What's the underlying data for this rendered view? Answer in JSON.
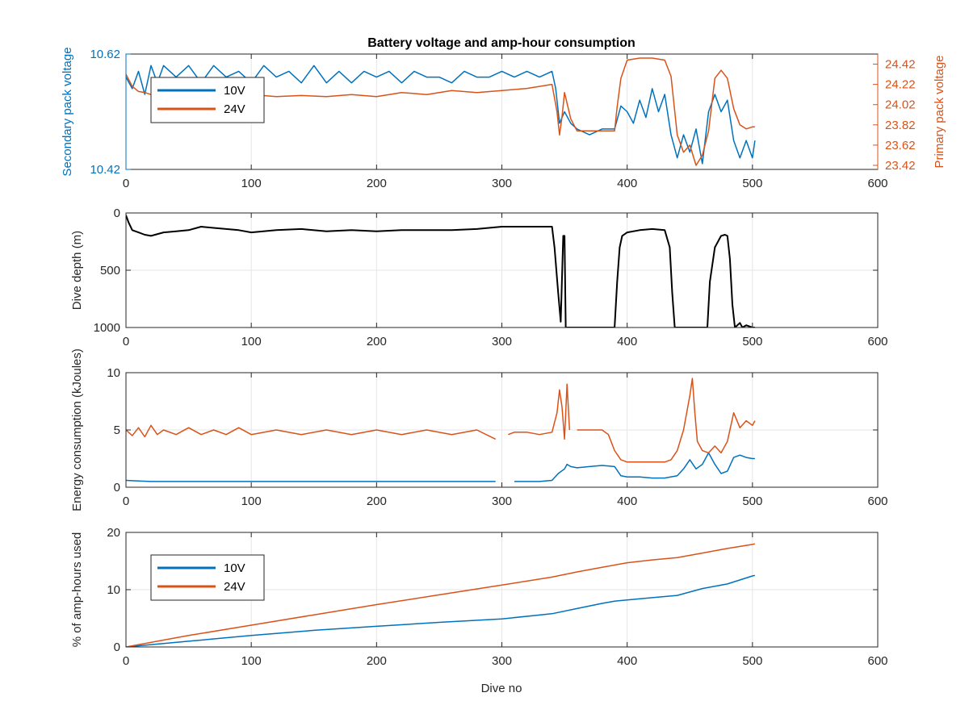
{
  "colors": {
    "series_10v": "#0072BD",
    "series_24v": "#D95319",
    "depth": "#000000",
    "axis": "#262626",
    "grid": "#e6e6e6"
  },
  "chart_data": [
    {
      "type": "line",
      "title": "Battery voltage and amp-hour consumption",
      "xlabel": "",
      "xlim": [
        0,
        600
      ],
      "xticks": [
        0,
        100,
        200,
        300,
        400,
        500,
        600
      ],
      "ylabel_left": "Secondary pack voltage",
      "ylim_left": [
        10.42,
        10.62
      ],
      "yticks_left": [
        "10.42",
        "10.62"
      ],
      "ylabel_right": "Primary pack voltage",
      "ylim_right": [
        23.38,
        24.52
      ],
      "yticks_right": [
        "23.42",
        "23.62",
        "23.82",
        "24.02",
        "24.22",
        "24.42"
      ],
      "legend": {
        "placement": "top-left",
        "entries": [
          "10V",
          "24V"
        ]
      },
      "grid": true,
      "series": [
        {
          "name": "10V",
          "axis": "left",
          "x": [
            0,
            5,
            10,
            15,
            20,
            25,
            30,
            40,
            50,
            60,
            70,
            80,
            90,
            100,
            110,
            120,
            130,
            140,
            150,
            160,
            170,
            180,
            190,
            200,
            210,
            220,
            230,
            240,
            250,
            260,
            270,
            280,
            290,
            300,
            310,
            320,
            330,
            340,
            343,
            346,
            350,
            355,
            360,
            370,
            380,
            390,
            395,
            400,
            405,
            410,
            415,
            420,
            425,
            430,
            435,
            440,
            445,
            450,
            455,
            460,
            465,
            470,
            475,
            480,
            485,
            490,
            495,
            500,
            502
          ],
          "y": [
            10.58,
            10.56,
            10.59,
            10.55,
            10.6,
            10.57,
            10.6,
            10.58,
            10.6,
            10.57,
            10.6,
            10.58,
            10.59,
            10.57,
            10.6,
            10.58,
            10.59,
            10.57,
            10.6,
            10.57,
            10.59,
            10.57,
            10.59,
            10.58,
            10.59,
            10.57,
            10.59,
            10.58,
            10.58,
            10.57,
            10.59,
            10.58,
            10.58,
            10.59,
            10.58,
            10.59,
            10.58,
            10.59,
            10.56,
            10.5,
            10.52,
            10.5,
            10.49,
            10.48,
            10.49,
            10.49,
            10.53,
            10.52,
            10.5,
            10.54,
            10.51,
            10.56,
            10.52,
            10.55,
            10.48,
            10.44,
            10.48,
            10.45,
            10.49,
            10.43,
            10.52,
            10.55,
            10.52,
            10.54,
            10.47,
            10.44,
            10.47,
            10.44,
            10.47
          ]
        },
        {
          "name": "24V",
          "axis": "right",
          "x": [
            0,
            5,
            10,
            15,
            20,
            30,
            40,
            50,
            60,
            70,
            80,
            90,
            100,
            120,
            140,
            160,
            180,
            200,
            220,
            240,
            260,
            280,
            300,
            320,
            340,
            344,
            346,
            348,
            350,
            355,
            360,
            370,
            380,
            390,
            392,
            395,
            400,
            410,
            420,
            430,
            435,
            440,
            445,
            450,
            455,
            460,
            465,
            470,
            475,
            480,
            485,
            490,
            495,
            500,
            502
          ],
          "y": [
            24.32,
            24.2,
            24.15,
            24.14,
            24.12,
            24.1,
            24.12,
            24.1,
            24.12,
            24.1,
            24.12,
            24.11,
            24.12,
            24.1,
            24.11,
            24.1,
            24.12,
            24.1,
            24.14,
            24.12,
            24.16,
            24.14,
            24.16,
            24.18,
            24.22,
            23.95,
            23.72,
            23.9,
            24.14,
            23.88,
            23.76,
            23.76,
            23.76,
            23.76,
            24.0,
            24.28,
            24.46,
            24.48,
            24.48,
            24.46,
            24.3,
            23.72,
            23.55,
            23.62,
            23.42,
            23.52,
            23.76,
            24.28,
            24.36,
            24.28,
            23.98,
            23.82,
            23.78,
            23.8,
            23.8
          ]
        }
      ]
    },
    {
      "type": "line",
      "title": "",
      "xlabel": "",
      "xlim": [
        0,
        600
      ],
      "xticks": [
        0,
        100,
        200,
        300,
        400,
        500,
        600
      ],
      "ylabel": "Dive depth (m)",
      "ylim": [
        0,
        1000
      ],
      "y_reversed": true,
      "yticks": [
        "0",
        "500",
        "1000"
      ],
      "grid": true,
      "series": [
        {
          "axis": "left",
          "x": [
            0,
            2,
            5,
            10,
            15,
            20,
            30,
            40,
            50,
            60,
            70,
            80,
            90,
            100,
            120,
            140,
            160,
            180,
            200,
            220,
            240,
            260,
            280,
            300,
            320,
            340,
            342,
            345,
            347,
            349,
            350,
            351,
            352,
            355,
            360,
            370,
            380,
            390,
            392,
            394,
            396,
            400,
            410,
            420,
            430,
            434,
            436,
            438,
            440,
            445,
            450,
            455,
            460,
            462,
            464,
            466,
            470,
            475,
            478,
            480,
            482,
            484,
            486,
            490,
            492,
            495,
            500,
            502
          ],
          "y": [
            20,
            80,
            150,
            170,
            190,
            200,
            170,
            160,
            150,
            120,
            130,
            140,
            150,
            170,
            150,
            140,
            160,
            150,
            160,
            150,
            150,
            150,
            140,
            120,
            120,
            120,
            300,
            700,
            950,
            200,
            200,
            1000,
            1000,
            1000,
            1000,
            1000,
            1000,
            1000,
            600,
            300,
            200,
            170,
            150,
            140,
            150,
            300,
            700,
            1000,
            1000,
            1000,
            1000,
            1000,
            1000,
            1000,
            1000,
            600,
            300,
            200,
            190,
            200,
            400,
            800,
            1000,
            960,
            1000,
            980,
            1000,
            1000
          ]
        }
      ]
    },
    {
      "type": "line",
      "title": "",
      "xlabel": "",
      "xlim": [
        0,
        600
      ],
      "xticks": [
        0,
        100,
        200,
        300,
        400,
        500,
        600
      ],
      "ylabel": "Energy consumption (kJoules)",
      "ylim": [
        0,
        10
      ],
      "yticks": [
        "0",
        "5",
        "10"
      ],
      "grid": true,
      "series": [
        {
          "axis": "left",
          "x": [
            0,
            10,
            20,
            30,
            40,
            50,
            60,
            80,
            100,
            120,
            140,
            160,
            180,
            200,
            220,
            240,
            260,
            280,
            295,
            300,
            310,
            320,
            330,
            340,
            345,
            350,
            352,
            355,
            360,
            370,
            380,
            390,
            395,
            400,
            410,
            420,
            430,
            440,
            445,
            450,
            455,
            460,
            465,
            470,
            475,
            480,
            485,
            490,
            495,
            500,
            502
          ],
          "y": [
            0.6,
            0.55,
            0.5,
            0.5,
            0.5,
            0.5,
            0.5,
            0.5,
            0.5,
            0.5,
            0.5,
            0.5,
            0.5,
            0.5,
            0.5,
            0.5,
            0.5,
            0.5,
            0.5,
            null,
            0.5,
            0.5,
            0.5,
            0.6,
            1.2,
            1.6,
            2.0,
            1.8,
            1.7,
            1.8,
            1.9,
            1.8,
            1.0,
            0.9,
            0.9,
            0.8,
            0.8,
            1.0,
            1.6,
            2.4,
            1.6,
            2.0,
            3.0,
            2.0,
            1.2,
            1.4,
            2.6,
            2.8,
            2.6,
            2.5,
            2.5
          ]
        },
        {
          "axis": "left",
          "x": [
            0,
            5,
            10,
            15,
            20,
            25,
            30,
            40,
            50,
            60,
            70,
            80,
            90,
            100,
            120,
            140,
            160,
            180,
            200,
            220,
            240,
            260,
            280,
            295,
            300,
            305,
            310,
            320,
            330,
            340,
            344,
            346,
            348,
            350,
            352,
            354,
            356,
            360,
            370,
            380,
            385,
            390,
            395,
            400,
            410,
            420,
            430,
            435,
            440,
            445,
            450,
            452,
            454,
            456,
            460,
            465,
            470,
            475,
            480,
            485,
            490,
            495,
            500,
            502
          ],
          "y": [
            5.0,
            4.5,
            5.2,
            4.4,
            5.4,
            4.6,
            5.0,
            4.6,
            5.2,
            4.6,
            5.0,
            4.6,
            5.2,
            4.6,
            5.0,
            4.6,
            5.0,
            4.6,
            5.0,
            4.6,
            5.0,
            4.6,
            5.0,
            4.2,
            null,
            4.6,
            4.8,
            4.8,
            4.6,
            4.8,
            6.5,
            8.5,
            7.0,
            4.2,
            9.0,
            5.0,
            null,
            5.0,
            5.0,
            5.0,
            4.6,
            3.2,
            2.4,
            2.2,
            2.2,
            2.2,
            2.2,
            2.4,
            3.2,
            5.0,
            8.0,
            9.5,
            6.5,
            4.0,
            3.2,
            3.0,
            3.6,
            3.0,
            4.0,
            6.5,
            5.2,
            5.8,
            5.4,
            5.8
          ]
        }
      ]
    },
    {
      "type": "line",
      "title": "",
      "xlabel": "Dive no",
      "xlim": [
        0,
        600
      ],
      "xticks": [
        0,
        100,
        200,
        300,
        400,
        500,
        600
      ],
      "ylabel": "% of amp-hours used",
      "ylim": [
        0,
        20
      ],
      "yticks": [
        "0",
        "10",
        "20"
      ],
      "legend": {
        "placement": "top-left",
        "entries": [
          "10V",
          "24V"
        ]
      },
      "grid": true,
      "series": [
        {
          "name": "10V",
          "axis": "left",
          "x": [
            0,
            50,
            100,
            150,
            200,
            250,
            300,
            340,
            360,
            380,
            390,
            400,
            420,
            440,
            460,
            480,
            500,
            502
          ],
          "y": [
            0,
            1.0,
            2.0,
            2.9,
            3.6,
            4.3,
            4.9,
            5.8,
            6.7,
            7.6,
            8.0,
            8.2,
            8.6,
            9.0,
            10.2,
            11.0,
            12.4,
            12.5
          ]
        },
        {
          "name": "24V",
          "axis": "left",
          "x": [
            0,
            50,
            100,
            150,
            200,
            250,
            300,
            340,
            360,
            380,
            400,
            420,
            440,
            460,
            480,
            500,
            502
          ],
          "y": [
            0,
            2.0,
            3.8,
            5.6,
            7.4,
            9.1,
            10.8,
            12.2,
            13.1,
            13.9,
            14.7,
            15.2,
            15.6,
            16.4,
            17.2,
            17.9,
            18.0
          ]
        }
      ]
    }
  ]
}
